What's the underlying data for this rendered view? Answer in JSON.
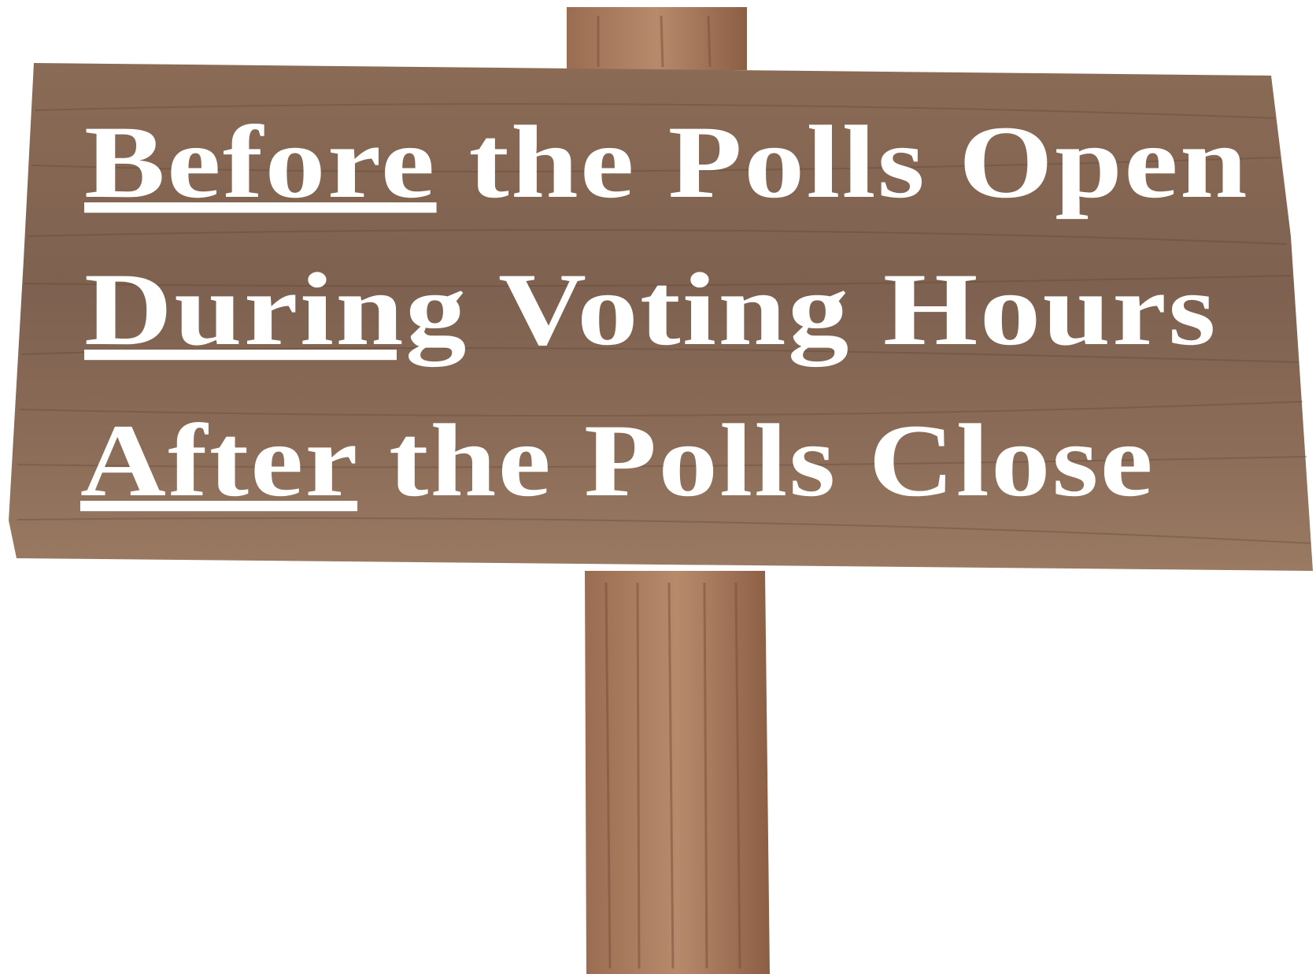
{
  "sign": {
    "lines": [
      {
        "underlined": "Before",
        "rest": "the Polls Open"
      },
      {
        "underlined": "During",
        "rest": "Voting Hours"
      },
      {
        "underlined": "After",
        "rest": "the Polls Close"
      }
    ]
  }
}
